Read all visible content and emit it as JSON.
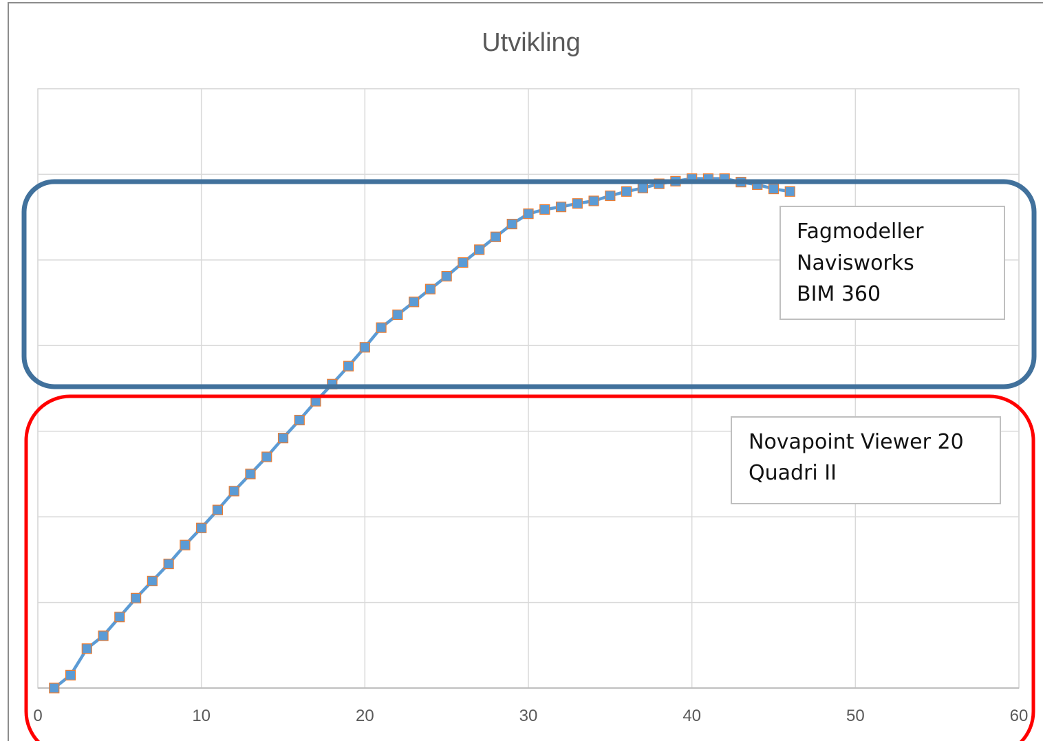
{
  "chart_data": {
    "type": "line",
    "title": "Utvikling",
    "xlabel": "",
    "ylabel": "",
    "xlim": [
      0,
      60
    ],
    "ylim": [
      0,
      7
    ],
    "x_ticks": [
      0,
      10,
      20,
      30,
      40,
      50,
      60
    ],
    "x_tick_labels": [
      "0",
      "10",
      "20",
      "30",
      "40",
      "50",
      "60"
    ],
    "grid": true,
    "legend": "none",
    "series": [
      {
        "color": "#5b9bd5",
        "marker_color": "#5b9bd5",
        "marker_edge_color": "#ed7d31",
        "x": [
          1,
          2,
          3,
          4,
          5,
          6,
          7,
          8,
          9,
          10,
          11,
          12,
          13,
          14,
          15,
          16,
          17,
          18,
          19,
          20,
          21,
          22,
          23,
          24,
          25,
          26,
          27,
          28,
          29,
          30,
          31,
          32,
          33,
          34,
          35,
          36,
          37,
          38,
          39,
          40,
          41,
          42,
          43,
          44,
          45,
          46
        ],
        "y": [
          0.0,
          0.15,
          0.46,
          0.61,
          0.83,
          1.05,
          1.25,
          1.45,
          1.67,
          1.87,
          2.08,
          2.3,
          2.5,
          2.7,
          2.92,
          3.13,
          3.35,
          3.55,
          3.76,
          3.98,
          4.21,
          4.36,
          4.51,
          4.66,
          4.81,
          4.97,
          5.12,
          5.27,
          5.42,
          5.54,
          5.59,
          5.62,
          5.66,
          5.69,
          5.75,
          5.8,
          5.84,
          5.89,
          5.92,
          5.95,
          5.95,
          5.95,
          5.91,
          5.88,
          5.83,
          5.8
        ]
      }
    ]
  },
  "annotations": {
    "upper_region": {
      "border_color": "#41719c",
      "lines": [
        "Fagmodeller",
        "Navisworks",
        "BIM 360"
      ]
    },
    "lower_region": {
      "border_color": "#ff0000",
      "lines": [
        "Novapoint Viewer 20",
        "Quadri II"
      ]
    }
  }
}
